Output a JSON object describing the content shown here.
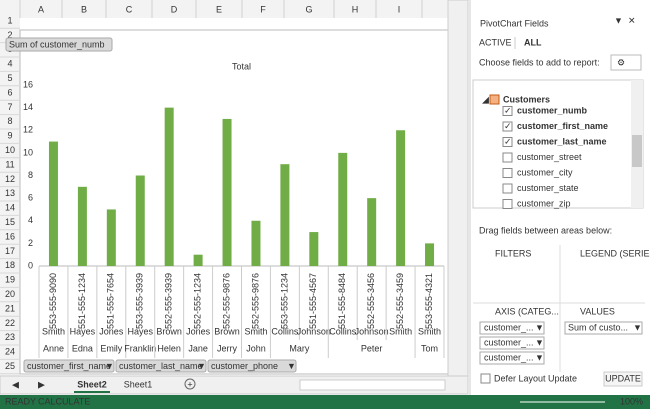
{
  "sheet": {
    "columns": [
      "A",
      "B",
      "C",
      "D",
      "E",
      "F",
      "G",
      "H",
      "I"
    ],
    "rows": [
      1,
      2,
      3,
      4,
      5,
      6,
      7,
      8,
      9,
      10,
      11,
      12,
      13,
      14,
      15,
      16,
      17,
      18,
      19,
      20,
      21,
      22,
      23,
      24,
      25
    ],
    "value_button": "Sum of customer_numb",
    "field_buttons": [
      "customer_first_name",
      "customer_last_name",
      "customer_phone"
    ],
    "tabs": [
      "Sheet2",
      "Sheet1"
    ]
  },
  "chart_data": {
    "type": "bar",
    "title": "Total",
    "categories": [
      "553-555-9090",
      "551-555-1234",
      "551-555-7654",
      "553-555-3939",
      "552-555-3939",
      "552-555-1234",
      "552-555-9876",
      "552-555-9876",
      "553-555-1234",
      "551-555-4567",
      "551-555-8484",
      "552-555-3456",
      "552-555-3459",
      "553-555-4321"
    ],
    "last_names": [
      "Smith",
      "Hayes",
      "Jones",
      "Hayes",
      "Brown",
      "Jones",
      "Brown",
      "Smith",
      "Collins",
      "Johnson",
      "Collins",
      "Johnson",
      "Smith",
      "Smith"
    ],
    "first_names": [
      "Anne",
      "Edna",
      "Emily",
      "Franklin",
      "Helen",
      "Jane",
      "Jerry",
      "John",
      "Mary",
      null,
      "Peter",
      null,
      null,
      "Tom"
    ],
    "values": [
      11,
      7,
      5,
      8,
      14,
      1,
      13,
      4,
      9,
      3,
      10,
      6,
      12,
      2
    ],
    "color": "#70ad47",
    "ylim": [
      0,
      16
    ],
    "yticks": [
      0,
      2,
      4,
      6,
      8,
      10,
      12,
      14,
      16
    ]
  },
  "pane": {
    "title": "PivotChart Fields",
    "tabs": [
      "ACTIVE",
      "ALL"
    ],
    "choose": "Choose fields to add to report:",
    "table": "Customers",
    "fields": [
      {
        "name": "customer_numb",
        "checked": true
      },
      {
        "name": "customer_first_name",
        "checked": true
      },
      {
        "name": "customer_last_name",
        "checked": true
      },
      {
        "name": "customer_street",
        "checked": false
      },
      {
        "name": "customer_city",
        "checked": false
      },
      {
        "name": "customer_state",
        "checked": false
      },
      {
        "name": "customer_zip",
        "checked": false
      }
    ],
    "drag": "Drag fields between areas below:",
    "areas": [
      "FILTERS",
      "LEGEND (SERIES)",
      "AXIS (CATEG...",
      "VALUES"
    ],
    "axis_items": [
      "customer_...",
      "customer_...",
      "customer_..."
    ],
    "value_items": [
      "Sum of custo..."
    ],
    "defer": "Defer Layout Update",
    "update": "UPDATE"
  },
  "status": {
    "ready": "READY",
    "calculate": "CALCULATE",
    "zoom": "100%"
  }
}
